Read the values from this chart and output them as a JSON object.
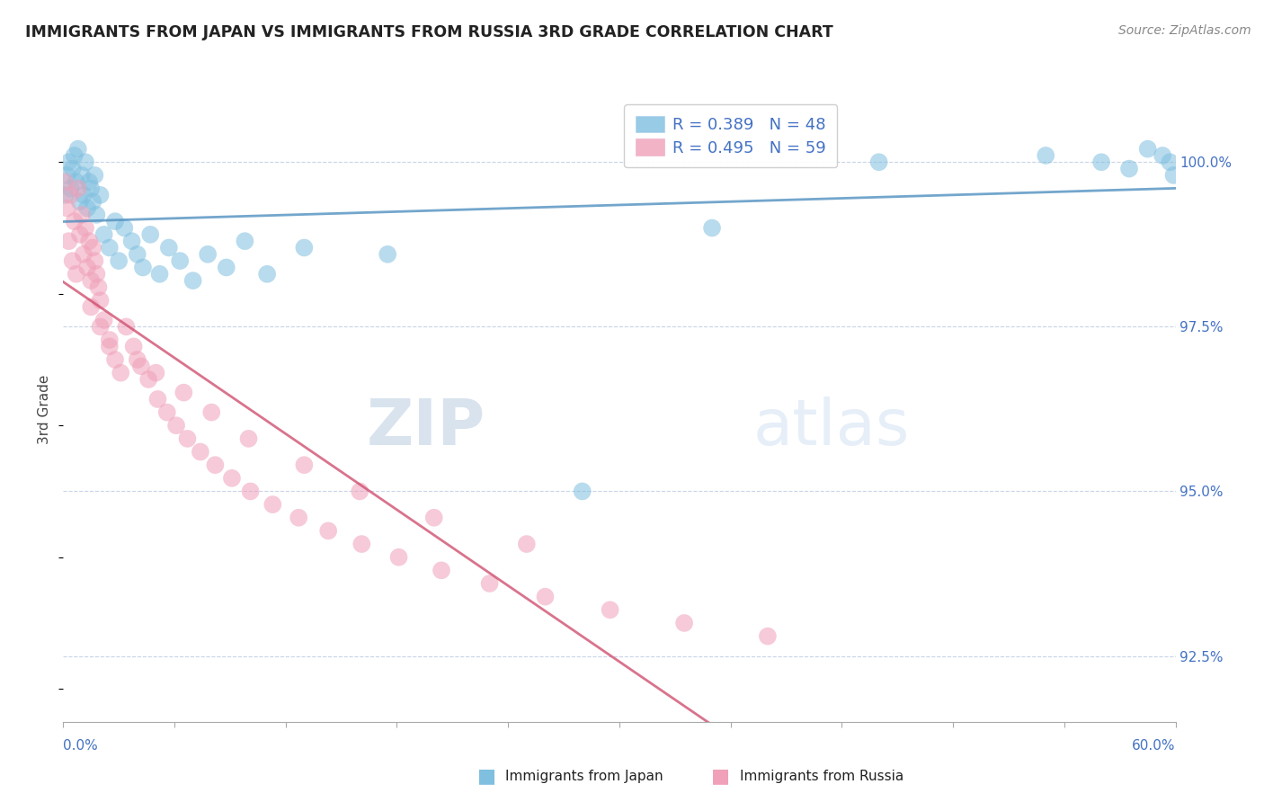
{
  "title": "IMMIGRANTS FROM JAPAN VS IMMIGRANTS FROM RUSSIA 3RD GRADE CORRELATION CHART",
  "source": "Source: ZipAtlas.com",
  "ylabel": "3rd Grade",
  "xmin": 0.0,
  "xmax": 0.6,
  "ymin": 91.5,
  "ymax": 101.0,
  "yticks": [
    92.5,
    95.0,
    97.5,
    100.0
  ],
  "ytick_labels": [
    "92.5%",
    "95.0%",
    "97.5%",
    "100.0%"
  ],
  "legend_r_japan": "R = 0.389",
  "legend_n_japan": "N = 48",
  "legend_r_russia": "R = 0.495",
  "legend_n_russia": "N = 59",
  "japan_color": "#7fbfdf",
  "russia_color": "#f0a0b8",
  "japan_line_color": "#5090c0",
  "russia_line_color": "#d05070",
  "background_color": "#ffffff",
  "grid_color": "#c8d4e8",
  "watermark_zip": "ZIP",
  "watermark_atlas": "atlas",
  "japan_x": [
    0.001,
    0.002,
    0.003,
    0.004,
    0.005,
    0.006,
    0.007,
    0.008,
    0.009,
    0.01,
    0.011,
    0.012,
    0.013,
    0.014,
    0.015,
    0.016,
    0.017,
    0.018,
    0.02,
    0.022,
    0.025,
    0.028,
    0.03,
    0.033,
    0.037,
    0.04,
    0.043,
    0.047,
    0.052,
    0.057,
    0.063,
    0.07,
    0.078,
    0.088,
    0.098,
    0.11,
    0.13,
    0.175,
    0.28,
    0.35,
    0.44,
    0.53,
    0.56,
    0.575,
    0.585,
    0.593,
    0.597,
    0.599
  ],
  "japan_y": [
    99.5,
    99.8,
    100.0,
    99.6,
    99.9,
    100.1,
    99.7,
    100.2,
    99.4,
    99.8,
    99.5,
    100.0,
    99.3,
    99.7,
    99.6,
    99.4,
    99.8,
    99.2,
    99.5,
    98.9,
    98.7,
    99.1,
    98.5,
    99.0,
    98.8,
    98.6,
    98.4,
    98.9,
    98.3,
    98.7,
    98.5,
    98.2,
    98.6,
    98.4,
    98.8,
    98.3,
    98.7,
    98.6,
    95.0,
    99.0,
    100.0,
    100.1,
    100.0,
    99.9,
    100.2,
    100.1,
    100.0,
    99.8
  ],
  "russia_x": [
    0.001,
    0.002,
    0.003,
    0.004,
    0.005,
    0.006,
    0.007,
    0.008,
    0.009,
    0.01,
    0.011,
    0.012,
    0.013,
    0.014,
    0.015,
    0.016,
    0.017,
    0.018,
    0.019,
    0.02,
    0.022,
    0.025,
    0.028,
    0.031,
    0.034,
    0.038,
    0.042,
    0.046,
    0.051,
    0.056,
    0.061,
    0.067,
    0.074,
    0.082,
    0.091,
    0.101,
    0.113,
    0.127,
    0.143,
    0.161,
    0.181,
    0.204,
    0.23,
    0.26,
    0.295,
    0.335,
    0.38,
    0.015,
    0.02,
    0.025,
    0.05,
    0.065,
    0.08,
    0.1,
    0.13,
    0.16,
    0.2,
    0.25,
    0.04
  ],
  "russia_y": [
    99.7,
    99.3,
    98.8,
    99.5,
    98.5,
    99.1,
    98.3,
    99.6,
    98.9,
    99.2,
    98.6,
    99.0,
    98.4,
    98.8,
    98.2,
    98.7,
    98.5,
    98.3,
    98.1,
    97.9,
    97.6,
    97.3,
    97.0,
    96.8,
    97.5,
    97.2,
    96.9,
    96.7,
    96.4,
    96.2,
    96.0,
    95.8,
    95.6,
    95.4,
    95.2,
    95.0,
    94.8,
    94.6,
    94.4,
    94.2,
    94.0,
    93.8,
    93.6,
    93.4,
    93.2,
    93.0,
    92.8,
    97.8,
    97.5,
    97.2,
    96.8,
    96.5,
    96.2,
    95.8,
    95.4,
    95.0,
    94.6,
    94.2,
    97.0
  ]
}
